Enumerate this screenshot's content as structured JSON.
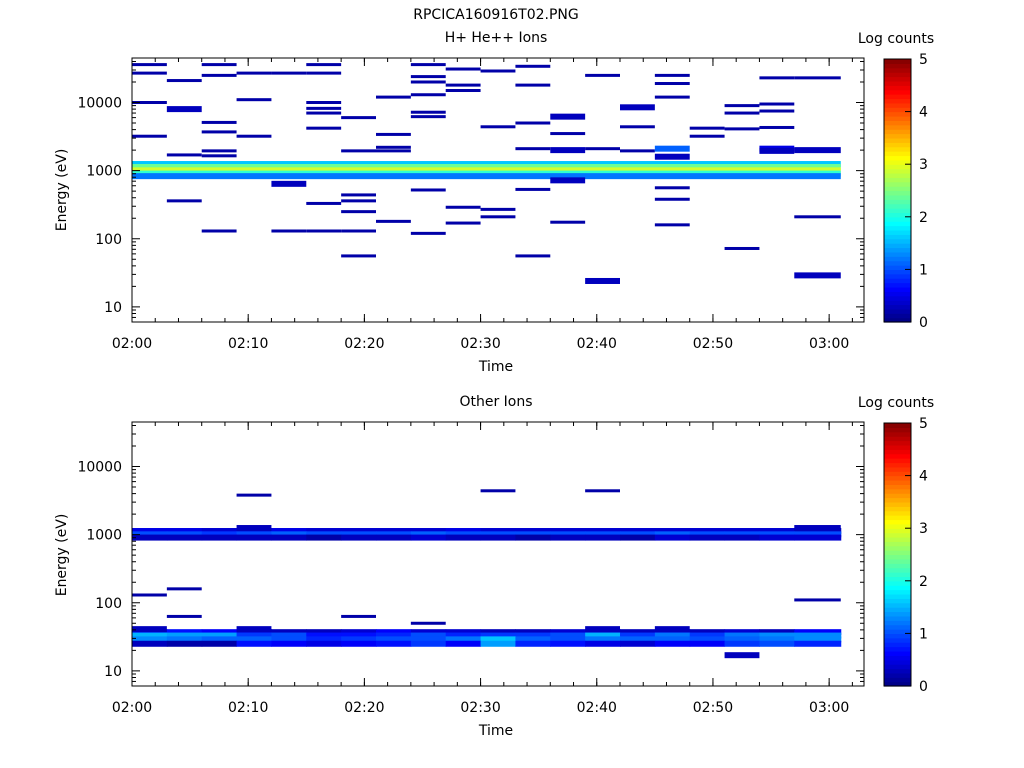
{
  "figure_title": "RPCICA160916T02.PNG",
  "colorbar_ticks": [
    "0",
    "1",
    "2",
    "3",
    "4",
    "5"
  ],
  "chart_data": [
    {
      "type": "heatmap",
      "title": "H+ He++ Ions",
      "xlabel": "Time",
      "ylabel": "Energy (eV)",
      "colorbar_label": "Log counts",
      "colorbar_range": [
        0,
        5
      ],
      "y_scale": "log",
      "ylim": [
        6,
        45000
      ],
      "xlim": [
        "02:00",
        "03:03"
      ],
      "x_ticks": [
        "02:00",
        "02:10",
        "02:20",
        "02:30",
        "02:40",
        "02:50",
        "03:00"
      ],
      "y_ticks": [
        "10",
        "100",
        "1000",
        "10000"
      ],
      "y_tick_values": [
        10,
        100,
        1000,
        10000
      ],
      "grid": false,
      "cells": [
        {
          "t0": "02:00",
          "t1": "02:03",
          "e": 36000,
          "v": 0.2
        },
        {
          "t0": "02:00",
          "t1": "02:03",
          "e": 27000,
          "v": 0.2
        },
        {
          "t0": "02:00",
          "t1": "02:03",
          "e": 10000,
          "v": 0.2
        },
        {
          "t0": "02:00",
          "t1": "02:03",
          "e": 3200,
          "v": 0.2
        },
        {
          "t0": "02:03",
          "t1": "02:06",
          "e": 21000,
          "v": 0.2
        },
        {
          "t0": "02:03",
          "t1": "02:06",
          "e": 8000,
          "v": 0.3
        },
        {
          "t0": "02:03",
          "t1": "02:06",
          "e": 1700,
          "v": 0.2
        },
        {
          "t0": "02:03",
          "t1": "02:06",
          "e": 360,
          "v": 0.2
        },
        {
          "t0": "02:06",
          "t1": "02:09",
          "e": 36000,
          "v": 0.2
        },
        {
          "t0": "02:06",
          "t1": "02:09",
          "e": 25000,
          "v": 0.2
        },
        {
          "t0": "02:06",
          "t1": "02:09",
          "e": 5100,
          "v": 0.2
        },
        {
          "t0": "02:06",
          "t1": "02:09",
          "e": 3700,
          "v": 0.2
        },
        {
          "t0": "02:06",
          "t1": "02:09",
          "e": 1950,
          "v": 0.2
        },
        {
          "t0": "02:06",
          "t1": "02:09",
          "e": 1650,
          "v": 0.2
        },
        {
          "t0": "02:06",
          "t1": "02:09",
          "e": 130,
          "v": 0.2
        },
        {
          "t0": "02:09",
          "t1": "02:12",
          "e": 27000,
          "v": 0.2
        },
        {
          "t0": "02:09",
          "t1": "02:12",
          "e": 11000,
          "v": 0.2
        },
        {
          "t0": "02:09",
          "t1": "02:12",
          "e": 3200,
          "v": 0.2
        },
        {
          "t0": "02:12",
          "t1": "02:15",
          "e": 27000,
          "v": 0.2
        },
        {
          "t0": "02:12",
          "t1": "02:15",
          "e": 640,
          "v": 0.3
        },
        {
          "t0": "02:12",
          "t1": "02:15",
          "e": 130,
          "v": 0.2
        },
        {
          "t0": "02:15",
          "t1": "02:18",
          "e": 36000,
          "v": 0.2
        },
        {
          "t0": "02:15",
          "t1": "02:18",
          "e": 27000,
          "v": 0.2
        },
        {
          "t0": "02:15",
          "t1": "02:18",
          "e": 10000,
          "v": 0.2
        },
        {
          "t0": "02:15",
          "t1": "02:18",
          "e": 8200,
          "v": 0.2
        },
        {
          "t0": "02:15",
          "t1": "02:18",
          "e": 7000,
          "v": 0.2
        },
        {
          "t0": "02:15",
          "t1": "02:18",
          "e": 4200,
          "v": 0.2
        },
        {
          "t0": "02:15",
          "t1": "02:18",
          "e": 330,
          "v": 0.2
        },
        {
          "t0": "02:15",
          "t1": "02:18",
          "e": 130,
          "v": 0.2
        },
        {
          "t0": "02:18",
          "t1": "02:21",
          "e": 6000,
          "v": 0.2
        },
        {
          "t0": "02:18",
          "t1": "02:21",
          "e": 1950,
          "v": 0.2
        },
        {
          "t0": "02:18",
          "t1": "02:21",
          "e": 440,
          "v": 0.2
        },
        {
          "t0": "02:18",
          "t1": "02:21",
          "e": 360,
          "v": 0.2
        },
        {
          "t0": "02:18",
          "t1": "02:21",
          "e": 250,
          "v": 0.2
        },
        {
          "t0": "02:18",
          "t1": "02:21",
          "e": 130,
          "v": 0.2
        },
        {
          "t0": "02:18",
          "t1": "02:21",
          "e": 56,
          "v": 0.2
        },
        {
          "t0": "02:21",
          "t1": "02:24",
          "e": 12000,
          "v": 0.2
        },
        {
          "t0": "02:21",
          "t1": "02:24",
          "e": 3400,
          "v": 0.2
        },
        {
          "t0": "02:21",
          "t1": "02:24",
          "e": 2200,
          "v": 0.2
        },
        {
          "t0": "02:21",
          "t1": "02:24",
          "e": 1950,
          "v": 0.2
        },
        {
          "t0": "02:21",
          "t1": "02:24",
          "e": 180,
          "v": 0.2
        },
        {
          "t0": "02:24",
          "t1": "02:27",
          "e": 36000,
          "v": 0.2
        },
        {
          "t0": "02:24",
          "t1": "02:27",
          "e": 24000,
          "v": 0.2
        },
        {
          "t0": "02:24",
          "t1": "02:27",
          "e": 20000,
          "v": 0.2
        },
        {
          "t0": "02:24",
          "t1": "02:27",
          "e": 13000,
          "v": 0.2
        },
        {
          "t0": "02:24",
          "t1": "02:27",
          "e": 7200,
          "v": 0.2
        },
        {
          "t0": "02:24",
          "t1": "02:27",
          "e": 6200,
          "v": 0.2
        },
        {
          "t0": "02:24",
          "t1": "02:27",
          "e": 520,
          "v": 0.2
        },
        {
          "t0": "02:24",
          "t1": "02:27",
          "e": 120,
          "v": 0.2
        },
        {
          "t0": "02:27",
          "t1": "02:30",
          "e": 31000,
          "v": 0.2
        },
        {
          "t0": "02:27",
          "t1": "02:30",
          "e": 18000,
          "v": 0.2
        },
        {
          "t0": "02:27",
          "t1": "02:30",
          "e": 15000,
          "v": 0.2
        },
        {
          "t0": "02:27",
          "t1": "02:30",
          "e": 290,
          "v": 0.2
        },
        {
          "t0": "02:27",
          "t1": "02:30",
          "e": 170,
          "v": 0.2
        },
        {
          "t0": "02:30",
          "t1": "02:33",
          "e": 29000,
          "v": 0.2
        },
        {
          "t0": "02:30",
          "t1": "02:33",
          "e": 4400,
          "v": 0.2
        },
        {
          "t0": "02:30",
          "t1": "02:33",
          "e": 270,
          "v": 0.2
        },
        {
          "t0": "02:30",
          "t1": "02:33",
          "e": 210,
          "v": 0.2
        },
        {
          "t0": "02:33",
          "t1": "02:36",
          "e": 34000,
          "v": 0.2
        },
        {
          "t0": "02:33",
          "t1": "02:36",
          "e": 18000,
          "v": 0.2
        },
        {
          "t0": "02:33",
          "t1": "02:36",
          "e": 5000,
          "v": 0.2
        },
        {
          "t0": "02:33",
          "t1": "02:36",
          "e": 2100,
          "v": 0.2
        },
        {
          "t0": "02:33",
          "t1": "02:36",
          "e": 530,
          "v": 0.2
        },
        {
          "t0": "02:33",
          "t1": "02:36",
          "e": 56,
          "v": 0.2
        },
        {
          "t0": "02:36",
          "t1": "02:39",
          "e": 6200,
          "v": 0.3
        },
        {
          "t0": "02:36",
          "t1": "02:39",
          "e": 3500,
          "v": 0.2
        },
        {
          "t0": "02:36",
          "t1": "02:39",
          "e": 2000,
          "v": 0.3
        },
        {
          "t0": "02:36",
          "t1": "02:39",
          "e": 720,
          "v": 0.3
        },
        {
          "t0": "02:36",
          "t1": "02:39",
          "e": 175,
          "v": 0.2
        },
        {
          "t0": "02:39",
          "t1": "02:42",
          "e": 25000,
          "v": 0.2
        },
        {
          "t0": "02:39",
          "t1": "02:42",
          "e": 2100,
          "v": 0.2
        },
        {
          "t0": "02:39",
          "t1": "02:42",
          "e": 24,
          "v": 0.3
        },
        {
          "t0": "02:42",
          "t1": "02:45",
          "e": 8500,
          "v": 0.3
        },
        {
          "t0": "02:42",
          "t1": "02:45",
          "e": 4400,
          "v": 0.2
        },
        {
          "t0": "02:42",
          "t1": "02:45",
          "e": 1950,
          "v": 0.2
        },
        {
          "t0": "02:45",
          "t1": "02:48",
          "e": 25000,
          "v": 0.2
        },
        {
          "t0": "02:45",
          "t1": "02:48",
          "e": 19000,
          "v": 0.2
        },
        {
          "t0": "02:45",
          "t1": "02:48",
          "e": 12000,
          "v": 0.2
        },
        {
          "t0": "02:45",
          "t1": "02:48",
          "e": 2100,
          "v": 1.1
        },
        {
          "t0": "02:45",
          "t1": "02:48",
          "e": 1600,
          "v": 0.3
        },
        {
          "t0": "02:45",
          "t1": "02:48",
          "e": 560,
          "v": 0.2
        },
        {
          "t0": "02:45",
          "t1": "02:48",
          "e": 380,
          "v": 0.2
        },
        {
          "t0": "02:45",
          "t1": "02:48",
          "e": 160,
          "v": 0.2
        },
        {
          "t0": "02:48",
          "t1": "02:51",
          "e": 4200,
          "v": 0.2
        },
        {
          "t0": "02:48",
          "t1": "02:51",
          "e": 3200,
          "v": 0.2
        },
        {
          "t0": "02:51",
          "t1": "02:54",
          "e": 9000,
          "v": 0.2
        },
        {
          "t0": "02:51",
          "t1": "02:54",
          "e": 7000,
          "v": 0.2
        },
        {
          "t0": "02:51",
          "t1": "02:54",
          "e": 4100,
          "v": 0.2
        },
        {
          "t0": "02:51",
          "t1": "02:54",
          "e": 72,
          "v": 0.2
        },
        {
          "t0": "02:54",
          "t1": "02:57",
          "e": 23000,
          "v": 0.2
        },
        {
          "t0": "02:54",
          "t1": "02:57",
          "e": 9500,
          "v": 0.2
        },
        {
          "t0": "02:54",
          "t1": "02:57",
          "e": 7500,
          "v": 0.2
        },
        {
          "t0": "02:54",
          "t1": "02:57",
          "e": 4300,
          "v": 0.2
        },
        {
          "t0": "02:54",
          "t1": "02:57",
          "e": 2100,
          "v": 0.5
        },
        {
          "t0": "02:54",
          "t1": "02:57",
          "e": 1950,
          "v": 0.3
        },
        {
          "t0": "02:57",
          "t1": "03:01",
          "e": 23000,
          "v": 0.2
        },
        {
          "t0": "02:57",
          "t1": "03:01",
          "e": 2000,
          "v": 0.3
        },
        {
          "t0": "02:57",
          "t1": "03:01",
          "e": 210,
          "v": 0.2
        },
        {
          "t0": "02:57",
          "t1": "03:01",
          "e": 29,
          "v": 0.3
        }
      ],
      "background_bands": [
        {
          "e": 1250,
          "v": 1.6
        },
        {
          "e": 1130,
          "v": 2.4
        },
        {
          "e": 1010,
          "v": 2.9
        },
        {
          "e": 905,
          "v": 2.1
        },
        {
          "e": 830,
          "v": 1.2
        }
      ],
      "band_t0": "02:00",
      "band_t1": "03:01"
    },
    {
      "type": "heatmap",
      "title": "Other Ions",
      "xlabel": "Time",
      "ylabel": "Energy (eV)",
      "colorbar_label": "Log counts",
      "colorbar_range": [
        0,
        5
      ],
      "y_scale": "log",
      "ylim": [
        6,
        45000
      ],
      "xlim": [
        "02:00",
        "03:03"
      ],
      "x_ticks": [
        "02:00",
        "02:10",
        "02:20",
        "02:30",
        "02:40",
        "02:50",
        "03:00"
      ],
      "y_ticks": [
        "10",
        "100",
        "1000",
        "10000"
      ],
      "y_tick_values": [
        10,
        100,
        1000,
        10000
      ],
      "grid": false,
      "cells": [
        {
          "t0": "02:09",
          "t1": "02:12",
          "e": 3800,
          "v": 0.2
        },
        {
          "t0": "02:30",
          "t1": "02:33",
          "e": 4400,
          "v": 0.2
        },
        {
          "t0": "02:39",
          "t1": "02:42",
          "e": 4400,
          "v": 0.2
        },
        {
          "t0": "02:00",
          "t1": "02:03",
          "e": 130,
          "v": 0.2
        },
        {
          "t0": "02:03",
          "t1": "02:06",
          "e": 160,
          "v": 0.2
        },
        {
          "t0": "02:03",
          "t1": "02:06",
          "e": 63,
          "v": 0.2
        },
        {
          "t0": "02:18",
          "t1": "02:21",
          "e": 63,
          "v": 0.2
        },
        {
          "t0": "02:24",
          "t1": "02:27",
          "e": 50,
          "v": 0.2
        },
        {
          "t0": "02:57",
          "t1": "03:01",
          "e": 110,
          "v": 0.2
        },
        {
          "t0": "02:51",
          "t1": "02:54",
          "e": 17,
          "v": 0.3
        },
        {
          "t0": "02:00",
          "t1": "02:03",
          "e": 41,
          "v": 0.3
        },
        {
          "t0": "02:09",
          "t1": "02:12",
          "e": 41,
          "v": 0.3
        },
        {
          "t0": "02:39",
          "t1": "02:42",
          "e": 41,
          "v": 0.3
        },
        {
          "t0": "02:45",
          "t1": "02:48",
          "e": 41,
          "v": 0.3
        },
        {
          "t0": "02:09",
          "t1": "02:12",
          "e": 1250,
          "v": 0.3
        },
        {
          "t0": "02:57",
          "t1": "03:01",
          "e": 1250,
          "v": 0.3
        }
      ],
      "band_columns": [
        "02:00",
        "02:03",
        "02:06",
        "02:09",
        "02:12",
        "02:15",
        "02:18",
        "02:21",
        "02:24",
        "02:27",
        "02:30",
        "02:33",
        "02:36",
        "02:39",
        "02:42",
        "02:45",
        "02:48",
        "02:51",
        "02:54",
        "02:57",
        "03:01"
      ],
      "band_rows": [
        {
          "e": 1130,
          "values": [
            0.5,
            0.5,
            0.4,
            0.4,
            0.5,
            0.4,
            0.4,
            0.4,
            0.4,
            0.5,
            0.4,
            0.4,
            0.4,
            0.4,
            0.4,
            0.4,
            0.4,
            0.4,
            0.4,
            0.3
          ]
        },
        {
          "e": 1010,
          "values": [
            1.0,
            1.0,
            0.9,
            1.0,
            1.1,
            1.0,
            1.0,
            1.0,
            1.1,
            1.0,
            1.0,
            1.0,
            1.0,
            1.0,
            1.0,
            1.1,
            1.0,
            1.0,
            1.0,
            1.0
          ]
        },
        {
          "e": 905,
          "values": [
            0.3,
            0.3,
            0.3,
            0.3,
            0.3,
            0.2,
            0.3,
            0.3,
            0.4,
            0.3,
            0.3,
            0.2,
            0.3,
            0.3,
            0.2,
            0.4,
            0.3,
            0.3,
            0.4,
            0.4
          ]
        },
        {
          "e": 37,
          "values": [
            0.6,
            0.7,
            0.6,
            0.4,
            0.3,
            0.3,
            0.4,
            0.6,
            0.4,
            0.4,
            0.3,
            0.3,
            0.4,
            0.4,
            0.3,
            0.4,
            0.3,
            0.4,
            0.3,
            0.6
          ]
        },
        {
          "e": 33,
          "values": [
            1.5,
            1.4,
            1.4,
            0.9,
            1.0,
            0.7,
            0.7,
            0.8,
            1.0,
            0.8,
            0.9,
            0.9,
            1.0,
            1.5,
            0.9,
            1.2,
            0.9,
            1.2,
            1.3,
            1.3
          ]
        },
        {
          "e": 29,
          "values": [
            1.3,
            1.2,
            1.1,
            1.1,
            1.0,
            0.8,
            0.9,
            1.0,
            1.0,
            1.2,
            1.6,
            1.1,
            1.0,
            1.2,
            1.1,
            1.1,
            1.0,
            1.1,
            1.2,
            1.3
          ]
        },
        {
          "e": 25,
          "values": [
            0.3,
            0.2,
            0.2,
            0.7,
            0.6,
            0.5,
            0.6,
            0.7,
            0.9,
            0.6,
            1.4,
            0.8,
            0.7,
            0.5,
            0.4,
            0.6,
            0.6,
            0.9,
            1.0,
            0.8
          ]
        }
      ]
    }
  ]
}
